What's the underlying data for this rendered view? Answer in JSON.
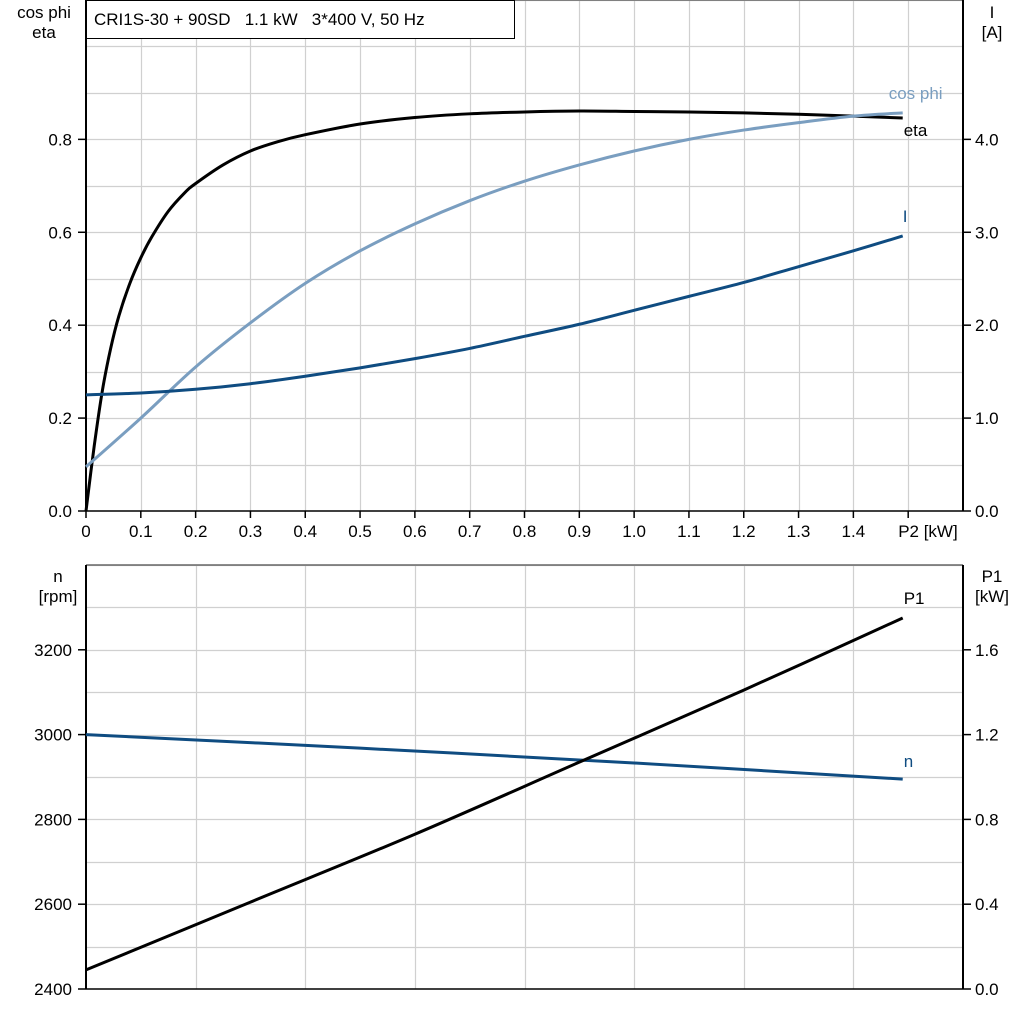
{
  "title": "CRI1S-30 + 90SD   1.1 kW   3*400 V, 50 Hz",
  "chart_data": [
    {
      "type": "line",
      "xlabel": "P2 [kW]",
      "x_ticks": [
        "0",
        "0.1",
        "0.2",
        "0.3",
        "0.4",
        "0.5",
        "0.6",
        "0.7",
        "0.8",
        "0.9",
        "1.0",
        "1.1",
        "1.2",
        "1.3",
        "1.4",
        "P2 [kW]"
      ],
      "xlim": [
        0,
        1.6
      ],
      "ylabel_left": [
        "cos phi",
        "eta"
      ],
      "ylim_left": [
        0,
        1.1
      ],
      "y_ticks_left": [
        "0.0",
        "0.2",
        "0.4",
        "0.6",
        "0.8"
      ],
      "ylabel_right": [
        "I",
        "[A]"
      ],
      "ylim_right": [
        0,
        5.5
      ],
      "y_ticks_right": [
        "0.0",
        "1.0",
        "2.0",
        "3.0",
        "4.0"
      ],
      "grid": true,
      "series": [
        {
          "name": "eta",
          "axis": "left",
          "color": "#000000",
          "x": [
            0,
            0.015,
            0.03,
            0.045,
            0.06,
            0.08,
            0.1,
            0.12,
            0.15,
            0.18,
            0.2,
            0.25,
            0.3,
            0.35,
            0.4,
            0.5,
            0.6,
            0.7,
            0.8,
            0.9,
            1.0,
            1.1,
            1.2,
            1.3,
            1.4,
            1.49
          ],
          "y": [
            0,
            0.14,
            0.26,
            0.35,
            0.42,
            0.49,
            0.545,
            0.59,
            0.645,
            0.685,
            0.705,
            0.745,
            0.775,
            0.795,
            0.81,
            0.833,
            0.847,
            0.855,
            0.859,
            0.861,
            0.86,
            0.859,
            0.857,
            0.854,
            0.85,
            0.846
          ]
        },
        {
          "name": "cos phi",
          "axis": "left",
          "color": "#7a9ec0",
          "x": [
            0,
            0.1,
            0.2,
            0.3,
            0.4,
            0.5,
            0.6,
            0.7,
            0.8,
            0.9,
            1.0,
            1.1,
            1.2,
            1.3,
            1.4,
            1.49
          ],
          "y": [
            0.095,
            0.2,
            0.31,
            0.405,
            0.49,
            0.56,
            0.618,
            0.668,
            0.71,
            0.745,
            0.775,
            0.8,
            0.82,
            0.836,
            0.85,
            0.857
          ]
        },
        {
          "name": "I",
          "axis": "right",
          "color": "#0f4c81",
          "x": [
            0,
            0.1,
            0.2,
            0.3,
            0.4,
            0.5,
            0.6,
            0.7,
            0.8,
            0.9,
            1.0,
            1.1,
            1.2,
            1.3,
            1.4,
            1.49
          ],
          "y": [
            1.25,
            1.27,
            1.31,
            1.37,
            1.45,
            1.54,
            1.64,
            1.75,
            1.88,
            2.01,
            2.16,
            2.31,
            2.46,
            2.63,
            2.8,
            2.96
          ]
        }
      ]
    },
    {
      "type": "line",
      "xlim": [
        0,
        1.6
      ],
      "ylabel_left": [
        "n",
        "[rpm]"
      ],
      "ylim_left": [
        2400,
        3400
      ],
      "y_ticks_left": [
        "2400",
        "2600",
        "2800",
        "3000",
        "3200"
      ],
      "ylabel_right": [
        "P1",
        "[kW]"
      ],
      "ylim_right": [
        0,
        2.0
      ],
      "y_ticks_right": [
        "0.0",
        "0.4",
        "0.8",
        "1.2",
        "1.6"
      ],
      "grid": true,
      "series": [
        {
          "name": "n",
          "axis": "left",
          "color": "#0f4c81",
          "x": [
            0,
            0.5,
            1.0,
            1.49
          ],
          "y": [
            3000,
            2968,
            2933,
            2895
          ]
        },
        {
          "name": "P1",
          "axis": "right",
          "color": "#000000",
          "x": [
            0,
            0.3,
            0.6,
            0.9,
            1.2,
            1.49
          ],
          "y": [
            0.09,
            0.41,
            0.73,
            1.07,
            1.41,
            1.75
          ]
        }
      ]
    }
  ]
}
